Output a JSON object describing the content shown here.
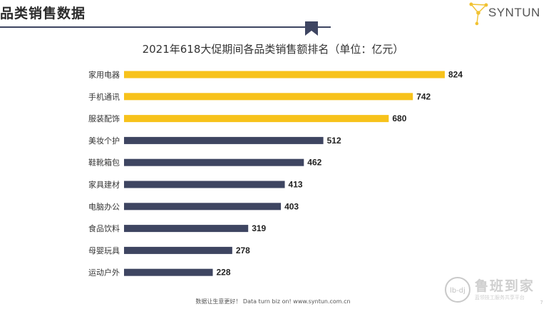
{
  "slide": {
    "title": "品类销售数据",
    "footer": "数据让生意更好！ Data turn biz on!  www.syntun.com.cn",
    "page_number": "7"
  },
  "logo": {
    "text": "SYNTUN"
  },
  "watermark": {
    "name": "鲁班到家",
    "sub": "蓝领技工服务共享平台",
    "badge": "lb-dj"
  },
  "colors": {
    "highlight": "#f7c21b",
    "normal": "#3e4561",
    "header_rule": "#3e4561",
    "logo_accent": "#f1c232"
  },
  "chart_data": {
    "type": "bar",
    "orientation": "horizontal",
    "title": "2021年618大促期间各品类销售额排名（单位：亿元）",
    "categories": [
      "家用电器",
      "手机通讯",
      "服装配饰",
      "美妆个护",
      "鞋靴箱包",
      "家具建材",
      "电脑办公",
      "食品饮料",
      "母婴玩具",
      "运动户外"
    ],
    "values": [
      824,
      742,
      680,
      512,
      462,
      413,
      403,
      319,
      278,
      228
    ],
    "highlight_top": 3,
    "xlim": [
      0,
      824
    ],
    "grid": false,
    "legend": "none"
  }
}
